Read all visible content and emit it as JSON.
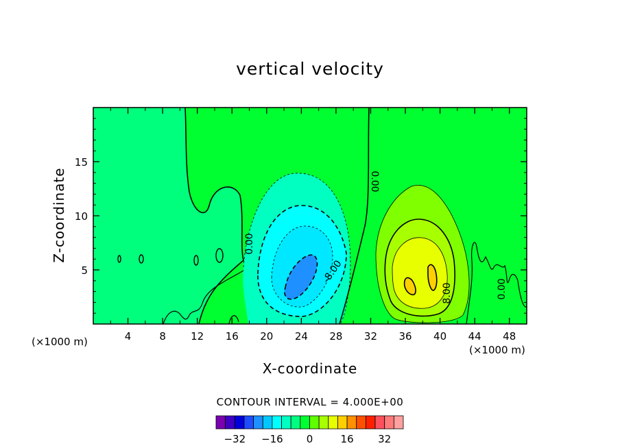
{
  "chart_data": {
    "type": "heatmap",
    "title": "vertical velocity",
    "xlabel": "X-coordinate",
    "ylabel": "Z-coordinate",
    "x_unit_label": "(×1000 m)",
    "xlim": [
      0,
      50
    ],
    "ylim": [
      0,
      20
    ],
    "x_ticks": [
      "4",
      "8",
      "12",
      "16",
      "20",
      "24",
      "28",
      "32",
      "36",
      "40",
      "44",
      "48"
    ],
    "y_ticks": [
      "5",
      "10",
      "15"
    ],
    "contour_interval_label": "CONTOUR INTERVAL = 4.000E+00",
    "contour_labels": [
      "0.00",
      "0.00",
      "-8.00",
      "8.00",
      "0.00"
    ],
    "colorbar": {
      "colors": [
        "#7a00b0",
        "#3f00c4",
        "#0000dc",
        "#1f4cff",
        "#1e90ff",
        "#00c8ff",
        "#00ffff",
        "#00ffc0",
        "#00ff80",
        "#00ff30",
        "#60ff00",
        "#a8ff00",
        "#e8ff00",
        "#ffd000",
        "#ff9000",
        "#ff5000",
        "#ff2000",
        "#ff5060",
        "#ff7a7a",
        "#ffa0a0"
      ],
      "tick_labels": [
        "-32",
        "-16",
        "0",
        "16",
        "32"
      ]
    },
    "grid": false,
    "legend": "colorbar-bottom"
  }
}
